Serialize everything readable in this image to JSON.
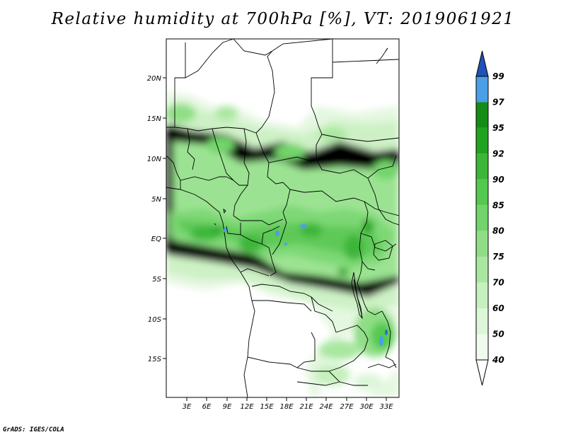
{
  "title": "Relative humidity at 700hPa [%], VT: 2019061921",
  "credit": "GrADS: IGES/COLA",
  "map": {
    "lat_labels": [
      "20N",
      "15N",
      "10N",
      "5N",
      "EQ",
      "5S",
      "10S",
      "15S"
    ],
    "lon_labels": [
      "3E",
      "6E",
      "9E",
      "12E",
      "15E",
      "18E",
      "21E",
      "24E",
      "27E",
      "30E",
      "33E"
    ]
  },
  "colorbar": {
    "levels": [
      "40",
      "50",
      "60",
      "70",
      "75",
      "80",
      "85",
      "90",
      "92",
      "95",
      "97",
      "99"
    ],
    "colors": [
      "#f0fbee",
      "#dcf6d8",
      "#c6f0bd",
      "#a9e7a0",
      "#8fde86",
      "#72d46a",
      "#55c94f",
      "#3bb638",
      "#20a31f",
      "#158c15",
      "#4a9fe6",
      "#2a6fd4",
      "#1f52b8"
    ]
  }
}
